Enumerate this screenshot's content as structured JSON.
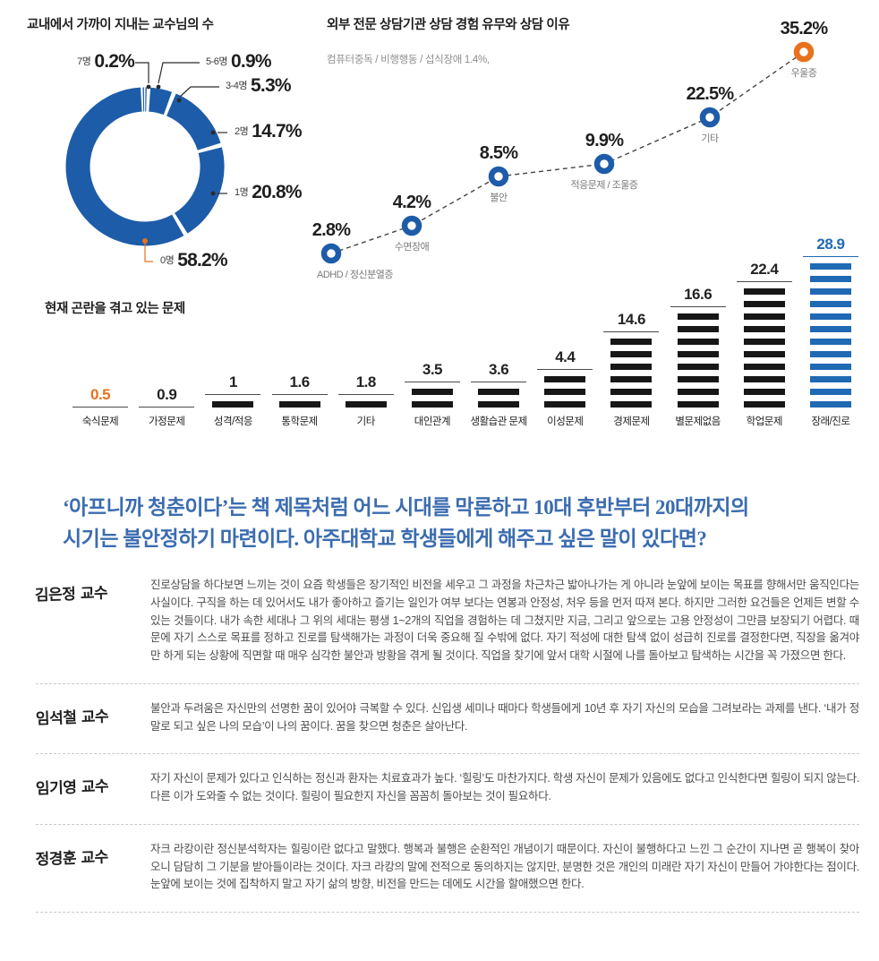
{
  "colors": {
    "blue": "#1d5ca8",
    "orange": "#e8721c",
    "bar_blue": "#2069b4",
    "dark": "#1f1f1f"
  },
  "chart_data": [
    {
      "type": "pie",
      "donut": true,
      "title": "교내에서 가까이 지내는 교수님의 수",
      "unit": "%",
      "legend_position": "callouts",
      "segments": [
        {
          "label": "7명",
          "value": 0.2
        },
        {
          "label": "5-6명",
          "value": 0.9
        },
        {
          "label": "3-4명",
          "value": 5.3
        },
        {
          "label": "2명",
          "value": 14.7
        },
        {
          "label": "1명",
          "value": 20.8
        },
        {
          "label": "0명",
          "value": 58.2,
          "highlight": true
        }
      ]
    },
    {
      "type": "line",
      "title": "외부 전문 상담기관 상담 경험 유무와 상담 이유",
      "annotation": "컴퓨터중독 / 비행행동 / 섭식장애 1.4%,",
      "unit": "%",
      "line_style": "dashed",
      "points": [
        {
          "label": "ADHD / 정신분열증",
          "value": 2.8
        },
        {
          "label": "수면장애",
          "value": 4.2
        },
        {
          "label": "불안",
          "value": 8.5
        },
        {
          "label": "적응문제 / 조울증",
          "value": 9.9
        },
        {
          "label": "기타",
          "value": 22.5
        },
        {
          "label": "우울증",
          "value": 35.2,
          "highlight": true
        }
      ]
    },
    {
      "type": "bar",
      "title": "현재 곤란을 겪고 있는 문제",
      "categories": [
        "숙식문제",
        "가정문제",
        "성격/적응",
        "통학문제",
        "기타",
        "대인관계",
        "생활습관 문제",
        "이성문제",
        "경제문제",
        "별문제없음",
        "학업문제",
        "장래/진로"
      ],
      "values": [
        0.5,
        0.9,
        1,
        1.6,
        1.8,
        3.5,
        3.6,
        4.4,
        14.6,
        16.6,
        22.4,
        28.9
      ],
      "dash_counts": [
        0,
        0,
        1,
        1,
        1,
        2,
        2,
        3,
        6,
        8,
        10,
        12
      ],
      "highlights": [
        {
          "index": 0,
          "apply": "value",
          "color": "#e8721c"
        },
        {
          "index": 11,
          "apply": "all",
          "color": "#2069b4"
        }
      ]
    }
  ],
  "headline": {
    "line1": "‘아프니까 청춘이다’는 책 제목처럼 어느 시대를 막론하고 10대 후반부터 20대까지의",
    "line2": "시기는 불안정하기 마련이다. 아주대학교 학생들에게 해주고 싶은 말이 있다면?"
  },
  "interviews": [
    {
      "name": "김은정 교수",
      "text": "진로상담을 하다보면 느끼는 것이 요즘 학생들은 장기적인 비전을 세우고 그 과정을 차근차근 밟아나가는 게 아니라 눈앞에 보이는 목표를 향해서만 움직인다는 사실이다. 구직을 하는 데 있어서도 내가 좋아하고 즐기는 일인가 여부 보다는 연봉과 안정성, 처우 등을 먼저 따져 본다. 하지만 그러한 요건들은 언제든 변할 수 있는 것들이다. 내가 속한 세대나 그 위의 세대는 평생 1~2개의 직업을 경험하는 데 그쳤지만 지금, 그리고 앞으로는 고용 안정성이 그만큼 보장되기 어렵다. 때문에 자기 스스로 목표를 정하고 진로를 탐색해가는 과정이 더욱 중요해 질 수밖에 없다. 자기 적성에 대한 탐색 없이 성급히 진로를 결정한다면, 직장을 옮겨야만 하게 되는 상황에 직면할 때 매우 심각한 불안과 방황을 겪게 될 것이다. 직업을 찾기에 앞서 대학 시절에 나를 돌아보고 탐색하는 시간을 꼭 가졌으면 한다."
    },
    {
      "name": "임석철 교수",
      "text": "불안과 두려움은 자신만의 선명한 꿈이 있어야 극복할 수 있다. 신입생 세미나 때마다 학생들에게 10년 후 자기 자신의 모습을 그려보라는 과제를 낸다. ‘내가 정말로 되고 싶은 나의 모습’이 나의 꿈이다. 꿈을 찾으면 청춘은 살아난다."
    },
    {
      "name": "임기영 교수",
      "text": "자기 자신이 문제가 있다고 인식하는 정신과 환자는 치료효과가 높다. ‘힐링’도 마찬가지다. 학생 자신이 문제가 있음에도 없다고 인식한다면 힐링이 되지 않는다. 다른 이가 도와줄 수 없는 것이다. 힐링이 필요한지 자신을 꼼꼼히 돌아보는 것이 필요하다."
    },
    {
      "name": "정경훈 교수",
      "text": "자크 라캉이란 정신분석학자는 힐링이란 없다고 말했다. 행복과 불행은 순환적인 개념이기 때문이다. 자신이 불행하다고 느낀 그 순간이 지나면 곧 행복이 찾아오니 담담히 그 기분을 받아들이라는 것이다. 자크 라캉의 말에 전적으로 동의하지는 않지만, 분명한 것은 개인의 미래란 자기 자신이 만들어 가야한다는 점이다. 눈앞에 보이는 것에 집착하지 말고 자기 삶의 방향, 비전을 만드는 데에도 시간을 할애했으면 한다."
    }
  ]
}
